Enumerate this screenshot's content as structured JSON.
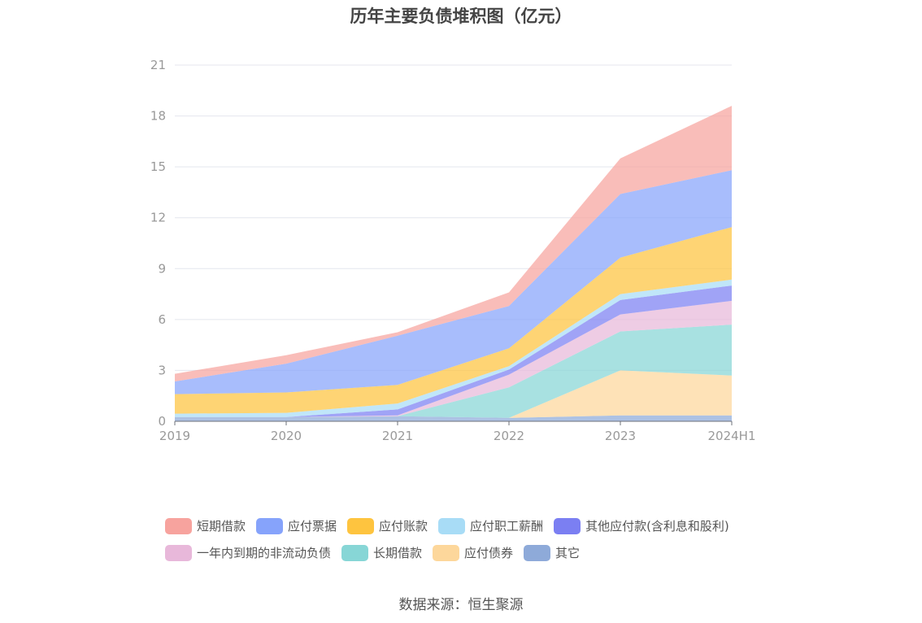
{
  "title": "历年主要负债堆积图（亿元）",
  "source": "数据来源：恒生聚源",
  "chart_data": {
    "type": "area",
    "stacked": true,
    "title": "历年主要负债堆积图（亿元）",
    "xlabel": "",
    "ylabel": "",
    "ylim": [
      0,
      21
    ],
    "yticks": [
      "0",
      "3",
      "6",
      "9",
      "12",
      "15",
      "18",
      "21"
    ],
    "categories": [
      "2019",
      "2020",
      "2021",
      "2022",
      "2023",
      "2024H1"
    ],
    "grid": true,
    "legend_position": "bottom",
    "series": [
      {
        "name": "其它",
        "color": "#8eaad9",
        "values": [
          0.25,
          0.25,
          0.3,
          0.2,
          0.35,
          0.35
        ]
      },
      {
        "name": "应付债券",
        "color": "#fdd79b",
        "values": [
          0,
          0,
          0,
          0,
          2.65,
          2.35
        ]
      },
      {
        "name": "长期借款",
        "color": "#87d6d6",
        "values": [
          0,
          0,
          0,
          1.8,
          2.3,
          3.0
        ]
      },
      {
        "name": "一年内到期的非流动负债",
        "color": "#e8b8da",
        "values": [
          0,
          0,
          0.05,
          0.75,
          1.0,
          1.4
        ]
      },
      {
        "name": "其他应付款(含利息和股利)",
        "color": "#7b7ff2",
        "values": [
          0,
          0,
          0.35,
          0.3,
          0.85,
          0.9
        ]
      },
      {
        "name": "应付职工薪酬",
        "color": "#a8dcf6",
        "values": [
          0.2,
          0.25,
          0.35,
          0.2,
          0.35,
          0.35
        ]
      },
      {
        "name": "应付账款",
        "color": "#fec43f",
        "values": [
          1.15,
          1.2,
          1.1,
          1.05,
          2.15,
          3.1
        ]
      },
      {
        "name": "应付票据",
        "color": "#86a3fb",
        "values": [
          0.75,
          1.7,
          2.9,
          2.5,
          3.75,
          3.35
        ]
      },
      {
        "name": "短期借款",
        "color": "#f7a39e",
        "values": [
          0.45,
          0.5,
          0.2,
          0.8,
          2.1,
          3.8
        ]
      }
    ],
    "legend_order": [
      "短期借款",
      "应付票据",
      "应付账款",
      "应付职工薪酬",
      "其他应付款(含利息和股利)",
      "一年内到期的非流动负债",
      "长期借款",
      "应付债券",
      "其它"
    ]
  }
}
